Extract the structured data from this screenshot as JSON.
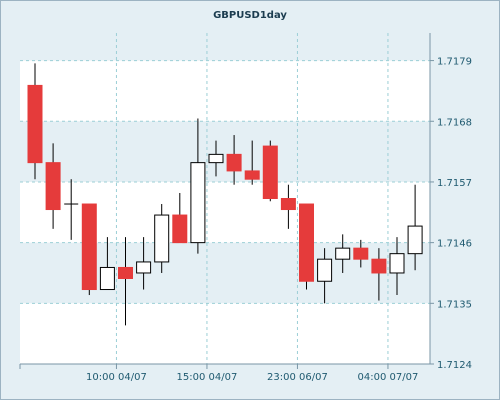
{
  "chart_data": {
    "type": "candlestick",
    "title": "GBPUSD1day",
    "xlabel": "",
    "ylabel": "",
    "ylim": [
      1.7124,
      1.7184
    ],
    "y_ticks": [
      "1.7179",
      "1.7168",
      "1.7157",
      "1.7146",
      "1.7135",
      "1.7124"
    ],
    "x_ticks": [
      {
        "index": 4.5,
        "label": "10:00 04/07"
      },
      {
        "index": 9.5,
        "label": "15:00 04/07"
      },
      {
        "index": 14.5,
        "label": "23:00 06/07"
      },
      {
        "index": 19.5,
        "label": "04:00 07/07"
      }
    ],
    "grid": true,
    "colors": {
      "up_fill": "#ffffff",
      "down_fill": "#e53b3b",
      "edge": "#000000",
      "wick": "#000000",
      "grid": "#9ccfd6",
      "axis_label": "#1f5a70"
    },
    "candles": [
      {
        "open": 1.71745,
        "high": 1.71785,
        "low": 1.71575,
        "close": 1.71605
      },
      {
        "open": 1.71605,
        "high": 1.7164,
        "low": 1.71485,
        "close": 1.7152
      },
      {
        "open": 1.7153,
        "high": 1.71575,
        "low": 1.71465,
        "close": 1.7153
      },
      {
        "open": 1.7153,
        "high": 1.7153,
        "low": 1.71365,
        "close": 1.71375
      },
      {
        "open": 1.71375,
        "high": 1.7147,
        "low": 1.71375,
        "close": 1.71415
      },
      {
        "open": 1.71415,
        "high": 1.7147,
        "low": 1.7131,
        "close": 1.71395
      },
      {
        "open": 1.71405,
        "high": 1.7147,
        "low": 1.71375,
        "close": 1.71425
      },
      {
        "open": 1.71425,
        "high": 1.7153,
        "low": 1.71405,
        "close": 1.7151
      },
      {
        "open": 1.7151,
        "high": 1.7155,
        "low": 1.7146,
        "close": 1.7146
      },
      {
        "open": 1.7146,
        "high": 1.71685,
        "low": 1.7144,
        "close": 1.71605
      },
      {
        "open": 1.71605,
        "high": 1.71645,
        "low": 1.7158,
        "close": 1.7162
      },
      {
        "open": 1.7162,
        "high": 1.71655,
        "low": 1.71565,
        "close": 1.7159
      },
      {
        "open": 1.7159,
        "high": 1.71645,
        "low": 1.71565,
        "close": 1.71575
      },
      {
        "open": 1.71635,
        "high": 1.71645,
        "low": 1.71535,
        "close": 1.7154
      },
      {
        "open": 1.7154,
        "high": 1.71565,
        "low": 1.71485,
        "close": 1.7152
      },
      {
        "open": 1.7153,
        "high": 1.7153,
        "low": 1.71375,
        "close": 1.7139
      },
      {
        "open": 1.7139,
        "high": 1.7145,
        "low": 1.7135,
        "close": 1.7143
      },
      {
        "open": 1.7143,
        "high": 1.71475,
        "low": 1.71405,
        "close": 1.7145
      },
      {
        "open": 1.7145,
        "high": 1.71465,
        "low": 1.71415,
        "close": 1.7143
      },
      {
        "open": 1.7143,
        "high": 1.7145,
        "low": 1.71355,
        "close": 1.71405
      },
      {
        "open": 1.71405,
        "high": 1.7147,
        "low": 1.71365,
        "close": 1.7144
      },
      {
        "open": 1.7144,
        "high": 1.71565,
        "low": 1.7141,
        "close": 1.7149
      }
    ]
  }
}
